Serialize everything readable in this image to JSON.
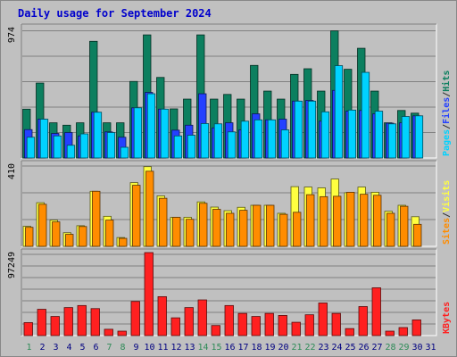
{
  "title": "Daily usage for September 2024",
  "colors": {
    "title": "#0000cc",
    "hits": "#0c7f5f",
    "files": "#2440ff",
    "pages": "#00d2ff",
    "visits": "#ffff40",
    "sites": "#ff8c00",
    "kbytes": "#ff2020",
    "weekend_day": "#2e8b57",
    "weekday": "#000080",
    "plot_bg": "#c0c0c0"
  },
  "chart_data": [
    {
      "type": "bar",
      "panel": "hits-files-pages",
      "ymax": 974,
      "ytick_label": "974",
      "legend": [
        "Pages",
        "/",
        "Files",
        "/",
        "Hits"
      ],
      "categories": [
        "1",
        "2",
        "3",
        "4",
        "5",
        "6",
        "7",
        "8",
        "9",
        "10",
        "11",
        "12",
        "13",
        "14",
        "15",
        "16",
        "17",
        "18",
        "19",
        "20",
        "21",
        "22",
        "23",
        "24",
        "25",
        "26",
        "27",
        "28",
        "29",
        "30",
        "31"
      ],
      "series": [
        {
          "name": "Hits",
          "values": [
            365,
            560,
            263,
            245,
            263,
            872,
            263,
            263,
            572,
            920,
            602,
            367,
            440,
            920,
            440,
            475,
            440,
            692,
            500,
            440,
            625,
            667,
            500,
            950,
            663,
            820,
            500,
            263,
            355,
            335,
            0
          ]
        },
        {
          "name": "Files",
          "values": [
            212,
            290,
            183,
            190,
            165,
            342,
            195,
            155,
            375,
            490,
            365,
            208,
            245,
            480,
            225,
            263,
            210,
            330,
            285,
            290,
            425,
            430,
            275,
            505,
            350,
            355,
            330,
            260,
            263,
            315,
            0
          ]
        },
        {
          "name": "Pages",
          "values": [
            155,
            290,
            165,
            95,
            180,
            342,
            190,
            80,
            375,
            480,
            365,
            165,
            170,
            257,
            255,
            195,
            275,
            285,
            285,
            210,
            425,
            425,
            345,
            690,
            358,
            640,
            350,
            255,
            310,
            315,
            0
          ]
        }
      ]
    },
    {
      "type": "bar",
      "panel": "visits-sites",
      "ymax": 410,
      "ytick_label": "410",
      "legend": [
        "Sites",
        "/",
        "Visits"
      ],
      "categories": [
        "1",
        "2",
        "3",
        "4",
        "5",
        "6",
        "7",
        "8",
        "9",
        "10",
        "11",
        "12",
        "13",
        "14",
        "15",
        "16",
        "17",
        "18",
        "19",
        "20",
        "21",
        "22",
        "23",
        "24",
        "25",
        "26",
        "27",
        "28",
        "29",
        "30",
        "31"
      ],
      "series": [
        {
          "name": "Visits",
          "values": [
            100,
            218,
            131,
            68,
            103,
            275,
            150,
            44,
            318,
            398,
            252,
            145,
            145,
            222,
            196,
            178,
            195,
            205,
            205,
            165,
            298,
            296,
            292,
            336,
            268,
            296,
            270,
            175,
            205,
            148,
            0
          ]
        },
        {
          "name": "Sites",
          "values": [
            95,
            210,
            122,
            60,
            99,
            275,
            131,
            40,
            305,
            375,
            240,
            145,
            135,
            215,
            185,
            165,
            180,
            205,
            205,
            160,
            170,
            258,
            248,
            250,
            270,
            260,
            255,
            165,
            200,
            110,
            0
          ]
        }
      ]
    },
    {
      "type": "bar",
      "panel": "kbytes",
      "ymax": 97249,
      "ytick_label": "97249",
      "legend": [
        "KBytes"
      ],
      "categories": [
        "1",
        "2",
        "3",
        "4",
        "5",
        "6",
        "7",
        "8",
        "9",
        "10",
        "11",
        "12",
        "13",
        "14",
        "15",
        "16",
        "17",
        "18",
        "19",
        "20",
        "21",
        "22",
        "23",
        "24",
        "25",
        "26",
        "27",
        "28",
        "29",
        "30",
        "31"
      ],
      "series": [
        {
          "name": "KBytes",
          "values": [
            15200,
            30800,
            22400,
            32800,
            35200,
            31600,
            7400,
            5200,
            40000,
            97249,
            45600,
            20800,
            32800,
            41800,
            11800,
            35200,
            26000,
            22400,
            26000,
            23600,
            15600,
            24400,
            38200,
            26000,
            8200,
            34000,
            56000,
            5200,
            9400,
            18400,
            0
          ]
        }
      ]
    }
  ],
  "weekend_days": [
    "1",
    "7",
    "8",
    "14",
    "15",
    "21",
    "22",
    "28",
    "29"
  ]
}
